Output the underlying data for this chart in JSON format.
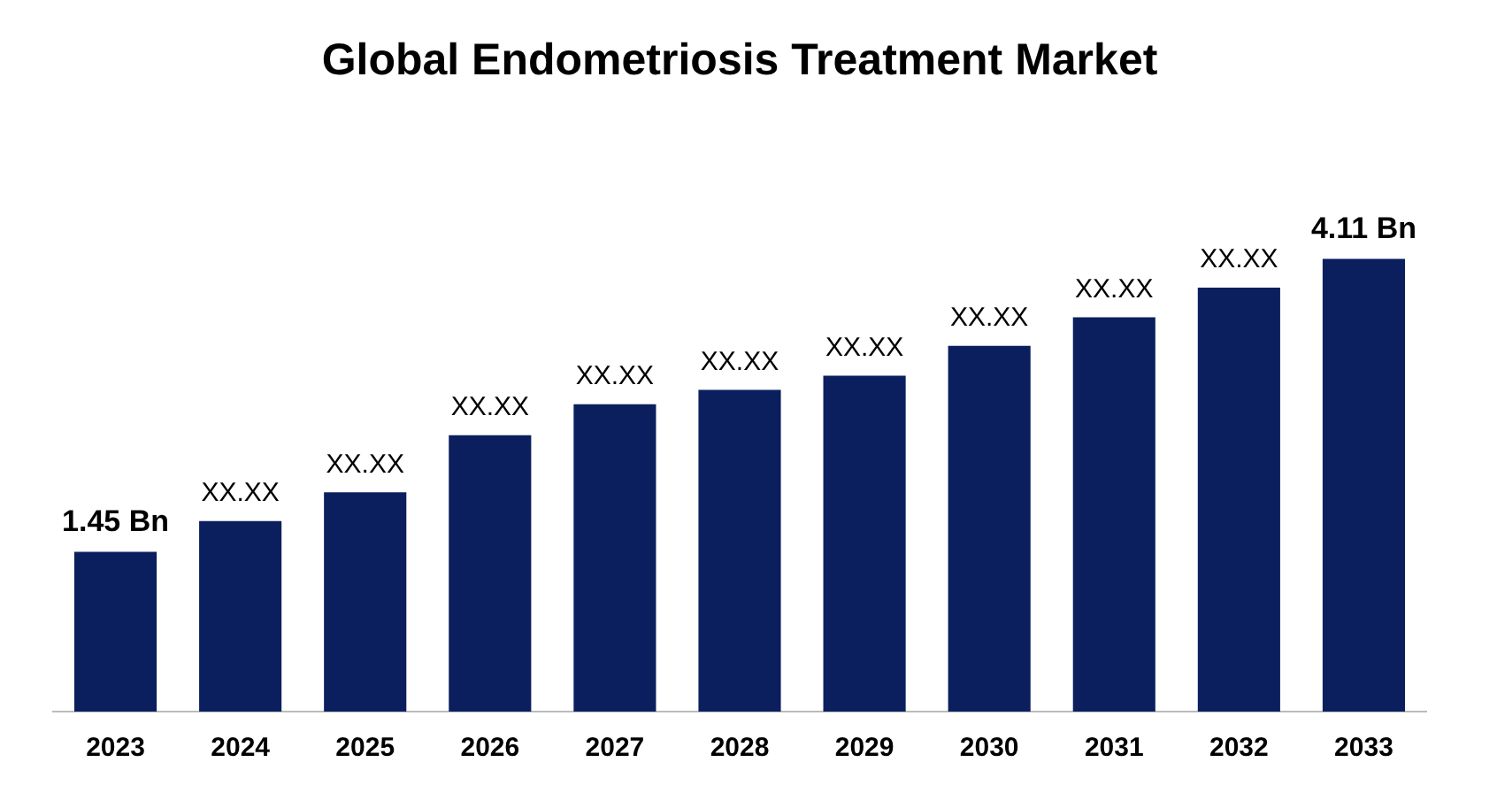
{
  "chart_data": {
    "type": "bar",
    "title": "Global Endometriosis Treatment Market",
    "categories": [
      "2023",
      "2024",
      "2025",
      "2026",
      "2027",
      "2028",
      "2029",
      "2030",
      "2031",
      "2032",
      "2033"
    ],
    "values": [
      1.45,
      1.73,
      1.99,
      2.51,
      2.79,
      2.92,
      3.05,
      3.32,
      3.58,
      3.85,
      4.11
    ],
    "value_labels": [
      "1.45 Bn",
      "XX.XX",
      "XX.XX",
      "XX.XX",
      "XX.XX",
      "XX.XX",
      "XX.XX",
      "XX.XX",
      "XX.XX",
      "XX.XX",
      "4.11 Bn"
    ],
    "color": "#0b1f5e",
    "grid": false,
    "legend": false
  }
}
